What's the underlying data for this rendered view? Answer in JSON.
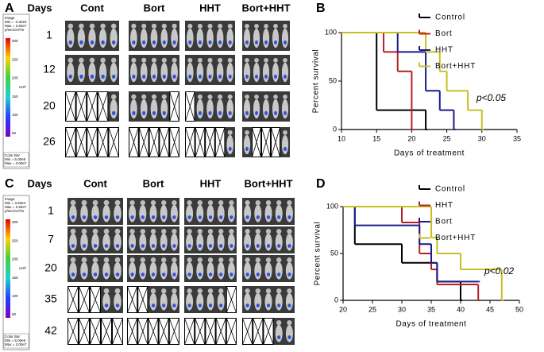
{
  "panels": [
    {
      "label": "A",
      "days_header": "Days",
      "groups": [
        "Cont",
        "Bort",
        "HHT",
        "Bort+HHT"
      ],
      "days": [
        "1",
        "12",
        "20",
        "26"
      ],
      "colorbar": {
        "image_lines": [
          "Image",
          "Min = -3.32e4",
          "Max = 2.92e7",
          "p/sec/cm²/sr"
        ],
        "unit": "x10³",
        "scale": [
          "300",
          "250",
          "200",
          "150",
          "100",
          "50"
        ],
        "bar_lines": [
          "Color Bar",
          "Min = 5.00e5",
          "Max = 3.00e7"
        ]
      }
    },
    {
      "label": "C",
      "days_header": "Days",
      "groups": [
        "Cont",
        "Bort",
        "HHT",
        "Bort+HHT"
      ],
      "days": [
        "1",
        "7",
        "20",
        "35",
        "42"
      ],
      "colorbar": {
        "image_lines": [
          "Image",
          "Min = 3.93e4",
          "Max = 2.92e7",
          "p/sec/cm²/sr"
        ],
        "unit": "x10³",
        "scale": [
          "300",
          "250",
          "200",
          "150",
          "100",
          "50"
        ],
        "bar_lines": [
          "Color Bar",
          "Min = 5.00e5",
          "Max = 3.00e7"
        ]
      }
    }
  ],
  "chart_data": [
    {
      "panel": "B",
      "type": "step",
      "xlabel": "Days of treatment",
      "ylabel": "Percent survival",
      "xlim": [
        10,
        35
      ],
      "xticks": [
        10,
        15,
        20,
        25,
        30,
        35
      ],
      "ylim": [
        0,
        100
      ],
      "yticks": [
        0,
        50,
        100
      ],
      "legend": "upper right",
      "annotation": "p<0.05",
      "series": [
        {
          "name": "Control",
          "color": "#000000",
          "x": [
            10,
            15,
            22
          ],
          "values": [
            100,
            20,
            0
          ]
        },
        {
          "name": "Bort",
          "color": "#b22222",
          "x": [
            10,
            16,
            18,
            20
          ],
          "values": [
            100,
            80,
            60,
            0
          ]
        },
        {
          "name": "HHT",
          "color": "#1a1a8c",
          "x": [
            10,
            18,
            22,
            24,
            26
          ],
          "values": [
            100,
            80,
            40,
            20,
            0
          ]
        },
        {
          "name": "Bort+HHT",
          "color": "#c8c020",
          "x": [
            10,
            22,
            24,
            25,
            28,
            30
          ],
          "values": [
            100,
            80,
            60,
            40,
            20,
            0
          ]
        }
      ]
    },
    {
      "panel": "D",
      "type": "step",
      "xlabel": "Days of treatment",
      "ylabel": "Percent survival",
      "xlim": [
        20,
        50
      ],
      "xticks": [
        20,
        25,
        30,
        35,
        40,
        45,
        50
      ],
      "ylim": [
        0,
        100
      ],
      "yticks": [
        0,
        50,
        100
      ],
      "legend": "upper right",
      "annotation": "p<0.02",
      "series": [
        {
          "name": "Control",
          "color": "#000000",
          "x": [
            20,
            22,
            30,
            36,
            40
          ],
          "values": [
            100,
            60,
            40,
            20,
            0
          ]
        },
        {
          "name": "HHT",
          "color": "#b22222",
          "x": [
            20,
            30,
            33,
            35,
            36,
            43
          ],
          "values": [
            100,
            83,
            50,
            33,
            17,
            0
          ]
        },
        {
          "name": "Bort",
          "color": "#1a1a8c",
          "x": [
            20,
            22,
            33,
            35,
            36,
            43
          ],
          "values": [
            100,
            80,
            60,
            40,
            20,
            20
          ]
        },
        {
          "name": "Bort+HHT",
          "color": "#c8c020",
          "x": [
            20,
            35,
            36,
            40,
            47
          ],
          "values": [
            100,
            67,
            50,
            33,
            0
          ]
        }
      ]
    }
  ]
}
